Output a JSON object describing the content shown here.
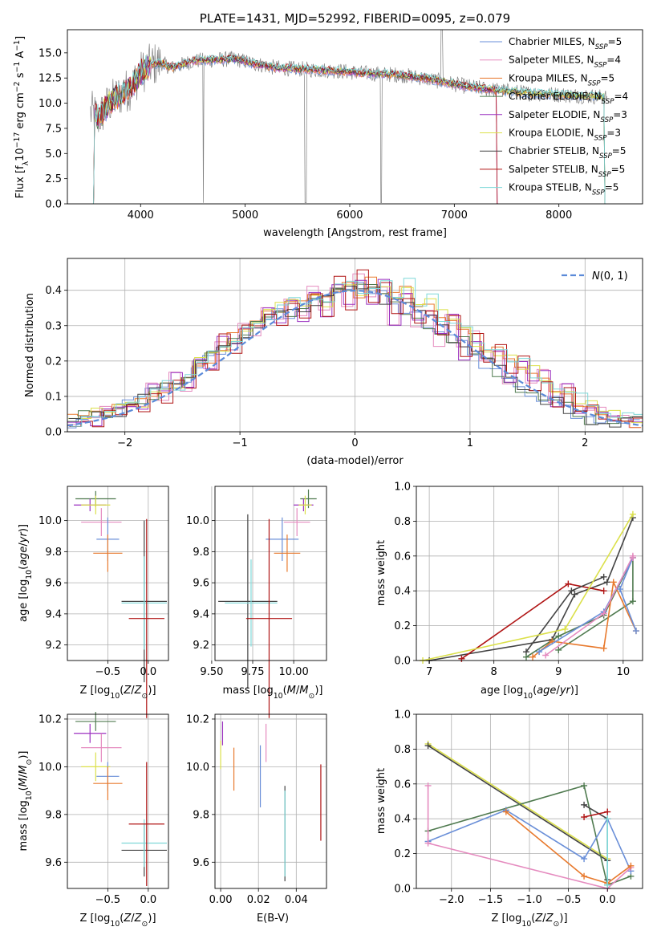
{
  "chart_data": [
    {
      "id": "spectrum",
      "type": "line",
      "title": "PLATE=1431, MJD=52992, FIBERID=0095, z=0.079",
      "xlabel": "wavelength [Angstrom, rest frame]",
      "ylabel": "Flux [f_λ 10^-17 erg cm^-2 s^-1 A^-1]",
      "xlim": [
        3300,
        8800
      ],
      "ylim": [
        0,
        17.3
      ],
      "xticks": [
        4000,
        5000,
        6000,
        7000,
        8000
      ],
      "yticks": [
        0.0,
        2.5,
        5.0,
        7.5,
        10.0,
        12.5,
        15.0
      ],
      "grid": false,
      "legend_position": "top-right",
      "data_x": [
        3550,
        3600,
        3700,
        3800,
        3900,
        4000,
        4100,
        4200,
        4300,
        4500,
        4700,
        4900,
        5100,
        5300,
        5500,
        5700,
        5900,
        6100,
        6300,
        6500,
        6700,
        6900,
        7100,
        7300,
        7500,
        7700,
        7900,
        8100,
        8300,
        8450
      ],
      "data_y": [
        9.0,
        8.5,
        10.0,
        10.8,
        11.5,
        13.0,
        13.8,
        14.0,
        13.5,
        14.2,
        14.3,
        14.4,
        13.9,
        13.5,
        13.4,
        13.3,
        13.2,
        13.0,
        12.9,
        12.8,
        12.5,
        12.1,
        11.7,
        11.4,
        11.2,
        11.0,
        10.9,
        10.8,
        10.7,
        10.6
      ],
      "series": [
        {
          "name": "Chabrier MILES, N_SSP=5",
          "label_main": "Chabrier MILES, N",
          "label_sub": "SSP",
          "label_tail": "=5",
          "color": "#6a8fd8"
        },
        {
          "name": "Salpeter MILES, N_SSP=4",
          "label_main": "Salpeter MILES, N",
          "label_sub": "SSP",
          "label_tail": "=4",
          "color": "#e58bbf"
        },
        {
          "name": "Kroupa MILES, N_SSP=5",
          "label_main": "Kroupa MILES, N",
          "label_sub": "SSP",
          "label_tail": "=5",
          "color": "#e87a2e"
        },
        {
          "name": "Chabrier ELODIE, N_SSP=4",
          "label_main": "Chabrier ELODIE, N",
          "label_sub": "SSP",
          "label_tail": "=4",
          "color": "#4f7a4f"
        },
        {
          "name": "Salpeter ELODIE, N_SSP=3",
          "label_main": "Salpeter ELODIE, N",
          "label_sub": "SSP",
          "label_tail": "=3",
          "color": "#9b30c0"
        },
        {
          "name": "Kroupa ELODIE, N_SSP=3",
          "label_main": "Kroupa ELODIE, N",
          "label_sub": "SSP",
          "label_tail": "=3",
          "color": "#dbe04a"
        },
        {
          "name": "Chabrier STELIB, N_SSP=5",
          "label_main": "Chabrier STELIB, N",
          "label_sub": "SSP",
          "label_tail": "=5",
          "color": "#444444"
        },
        {
          "name": "Salpeter STELIB, N_SSP=5",
          "label_main": "Salpeter STELIB, N",
          "label_sub": "SSP",
          "label_tail": "=5",
          "color": "#b01515"
        },
        {
          "name": "Kroupa STELIB, N_SSP=5",
          "label_main": "Kroupa STELIB, N",
          "label_sub": "SSP",
          "label_tail": "=5",
          "color": "#7fd8d8"
        }
      ]
    },
    {
      "id": "residuals",
      "type": "step-histogram",
      "xlabel": "(data-model)/error",
      "ylabel": "Normed distribution",
      "xlim": [
        -2.5,
        2.5
      ],
      "ylim": [
        0,
        0.49
      ],
      "xticks": [
        -2,
        -1,
        0,
        1,
        2
      ],
      "yticks": [
        0.0,
        0.1,
        0.2,
        0.3,
        0.4
      ],
      "grid": true,
      "legend_position": "top-right",
      "legend_label": "N(0,1)",
      "bin_centers": [
        -2.45,
        -2.35,
        -2.25,
        -2.15,
        -2.05,
        -1.95,
        -1.85,
        -1.75,
        -1.65,
        -1.55,
        -1.45,
        -1.35,
        -1.25,
        -1.15,
        -1.05,
        -0.95,
        -0.85,
        -0.75,
        -0.65,
        -0.55,
        -0.45,
        -0.35,
        -0.25,
        -0.15,
        -0.05,
        0.05,
        0.15,
        0.25,
        0.35,
        0.45,
        0.55,
        0.65,
        0.75,
        0.85,
        0.95,
        1.05,
        1.15,
        1.25,
        1.35,
        1.45,
        1.55,
        1.65,
        1.75,
        1.85,
        1.95,
        2.05,
        2.15,
        2.25,
        2.35,
        2.45
      ],
      "histograms": [
        [
          0.03,
          0.04,
          0.05,
          0.05,
          0.06,
          0.08,
          0.09,
          0.11,
          0.12,
          0.13,
          0.16,
          0.19,
          0.22,
          0.23,
          0.25,
          0.27,
          0.3,
          0.32,
          0.33,
          0.34,
          0.35,
          0.37,
          0.38,
          0.39,
          0.4,
          0.41,
          0.4,
          0.38,
          0.37,
          0.35,
          0.33,
          0.31,
          0.29,
          0.27,
          0.25,
          0.22,
          0.19,
          0.17,
          0.15,
          0.13,
          0.11,
          0.09,
          0.08,
          0.07,
          0.05,
          0.04,
          0.04,
          0.03,
          0.03,
          0.03
        ],
        [
          0.02,
          0.04,
          0.03,
          0.06,
          0.05,
          0.09,
          0.07,
          0.12,
          0.1,
          0.15,
          0.13,
          0.2,
          0.17,
          0.26,
          0.23,
          0.3,
          0.28,
          0.35,
          0.31,
          0.36,
          0.33,
          0.4,
          0.34,
          0.42,
          0.36,
          0.44,
          0.37,
          0.42,
          0.32,
          0.39,
          0.3,
          0.35,
          0.26,
          0.33,
          0.22,
          0.27,
          0.2,
          0.24,
          0.15,
          0.2,
          0.13,
          0.16,
          0.09,
          0.12,
          0.07,
          0.08,
          0.05,
          0.05,
          0.04,
          0.03
        ],
        [
          0.03,
          0.03,
          0.05,
          0.05,
          0.06,
          0.09,
          0.08,
          0.11,
          0.13,
          0.12,
          0.17,
          0.2,
          0.21,
          0.24,
          0.27,
          0.28,
          0.32,
          0.33,
          0.35,
          0.37,
          0.36,
          0.38,
          0.37,
          0.4,
          0.43,
          0.38,
          0.42,
          0.41,
          0.39,
          0.42,
          0.35,
          0.37,
          0.33,
          0.3,
          0.29,
          0.26,
          0.24,
          0.23,
          0.2,
          0.19,
          0.17,
          0.14,
          0.13,
          0.11,
          0.09,
          0.07,
          0.06,
          0.05,
          0.04,
          0.03
        ]
      ]
    },
    {
      "id": "age-vs-Z",
      "type": "scatter",
      "xlabel": "Z [log10(Z/Z⊙)]",
      "ylabel": "age  [log10(age/yr)]",
      "xlim": [
        -1.0,
        0.25
      ],
      "ylim": [
        9.1,
        10.22
      ],
      "xticks": [
        -0.5,
        0.0
      ],
      "yticks": [
        9.2,
        9.4,
        9.6,
        9.8,
        10.0
      ],
      "grid": true
    },
    {
      "id": "age-vs-mass",
      "type": "scatter",
      "xlabel": "mass [log10(M/M⊙)]",
      "ylabel": "",
      "xlim": [
        9.52,
        10.2
      ],
      "ylim": [
        9.1,
        10.22
      ],
      "xticks": [
        9.5,
        9.75,
        10.0
      ],
      "yticks": [
        9.2,
        9.4,
        9.6,
        9.8,
        10.0
      ],
      "grid": true
    },
    {
      "id": "massweight-vs-age",
      "type": "line",
      "xlabel": "age  [log10(age/yr)]",
      "ylabel": "mass weight",
      "xlim": [
        6.8,
        10.3
      ],
      "ylim": [
        0,
        1.0
      ],
      "xticks": [
        7,
        8,
        9,
        10
      ],
      "yticks": [
        0.0,
        0.2,
        0.4,
        0.6,
        0.8,
        1.0
      ],
      "grid": true
    },
    {
      "id": "mass-vs-Z",
      "type": "scatter",
      "xlabel": "Z [log10(Z/Z⊙)]",
      "ylabel": "mass [log10(M/M⊙)]",
      "xlim": [
        -1.0,
        0.25
      ],
      "ylim": [
        9.49,
        10.22
      ],
      "xticks": [
        -0.5,
        0.0
      ],
      "yticks": [
        9.6,
        9.8,
        10.0,
        10.2
      ],
      "grid": true
    },
    {
      "id": "mass-vs-ebv",
      "type": "scatter",
      "xlabel": "E(B-V)",
      "ylabel": "",
      "xlim": [
        -0.003,
        0.056
      ],
      "ylim": [
        9.49,
        10.22
      ],
      "xticks": [
        0.0,
        0.02,
        0.04
      ],
      "yticks": [
        9.6,
        9.8,
        10.0,
        10.2
      ],
      "grid": true
    },
    {
      "id": "massweight-vs-Z",
      "type": "line",
      "xlabel": "Z [log10(Z/Z⊙)]",
      "ylabel": "mass weight",
      "xlim": [
        -2.45,
        0.45
      ],
      "ylim": [
        0,
        1.0
      ],
      "xticks": [
        -2.0,
        -1.5,
        -1.0,
        -0.5,
        0.0
      ],
      "yticks": [
        0.0,
        0.2,
        0.4,
        0.6,
        0.8,
        1.0
      ],
      "grid": true
    }
  ]
}
